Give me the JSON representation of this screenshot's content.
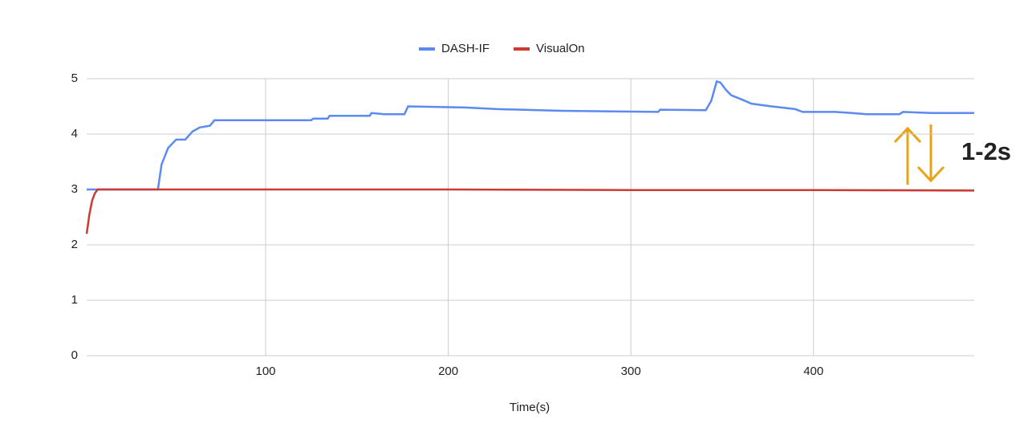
{
  "chart_data": {
    "type": "line",
    "x_label": "Time(s)",
    "annotation": "1-2s",
    "annotation_color": "#e8a317",
    "xlim": [
      2,
      488
    ],
    "xticks": [
      100,
      200,
      300,
      400
    ],
    "ylim": [
      0,
      5
    ],
    "yticks": [
      0,
      1,
      2,
      3,
      4,
      5
    ],
    "grid": true,
    "legend": "top",
    "series": [
      {
        "name": "DASH-IF",
        "color": "#5b8af0",
        "x": [
          2,
          41,
          43,
          46.6,
          51,
          56,
          60,
          64,
          69.5,
          72,
          125,
          126,
          134,
          135,
          157,
          158,
          165,
          176,
          178,
          209,
          227,
          262,
          315,
          316,
          341,
          344,
          347,
          349,
          352,
          355,
          361,
          366,
          377,
          390,
          394,
          412,
          421,
          429,
          447,
          449,
          465,
          488
        ],
        "values": [
          3,
          3,
          3.45,
          3.75,
          3.9,
          3.9,
          4.05,
          4.12,
          4.15,
          4.25,
          4.25,
          4.28,
          4.28,
          4.33,
          4.33,
          4.38,
          4.36,
          4.36,
          4.5,
          4.48,
          4.45,
          4.42,
          4.4,
          4.44,
          4.43,
          4.6,
          4.95,
          4.93,
          4.8,
          4.7,
          4.62,
          4.55,
          4.5,
          4.45,
          4.4,
          4.4,
          4.38,
          4.36,
          4.36,
          4.4,
          4.38,
          4.38
        ]
      },
      {
        "name": "VisualOn",
        "color": "#cc3b32",
        "x": [
          2,
          3.5,
          5,
          6.5,
          8,
          100,
          200,
          300,
          400,
          488
        ],
        "values": [
          2.2,
          2.55,
          2.8,
          2.93,
          3.0,
          3.0,
          3.0,
          2.99,
          2.99,
          2.98
        ]
      }
    ]
  }
}
